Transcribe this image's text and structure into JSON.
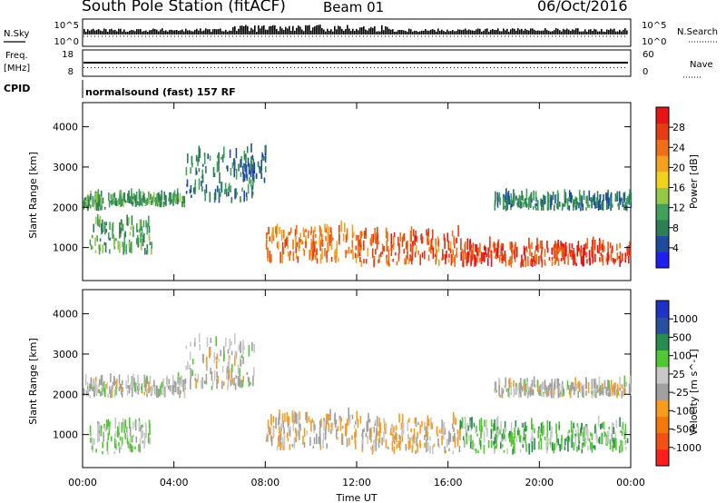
{
  "header": {
    "title": "South Pole Station (fitACF)",
    "beam": "Beam 01",
    "date": "06/Oct/2016"
  },
  "left_labels": {
    "nsky": "N.Sky",
    "freq": "Freq.",
    "mhz": "[MHz]",
    "cpid": "CPID"
  },
  "right_labels": {
    "nsearch": "N.Search",
    "nave": "Nave"
  },
  "cpid_text": "normalsound (fast) 157 RF",
  "noise_ticks": {
    "top": "10^5",
    "bottom": "10^0"
  },
  "freq_ticks": [
    "18",
    "8"
  ],
  "nave_ticks": [
    "60",
    "0"
  ],
  "x_ticks": [
    "00:00",
    "04:00",
    "08:00",
    "12:00",
    "16:00",
    "20:00",
    "00:00"
  ],
  "x_label": "Time UT",
  "y_label": "Slant Range [km]",
  "y_ticks": [
    "4000",
    "3000",
    "2000",
    "1000"
  ],
  "colors": {
    "power": [
      "#1e1ef0",
      "#1e4ba0",
      "#2d7d55",
      "#41a05a",
      "#96c846",
      "#f0d21e",
      "#f5a01e",
      "#f06e14",
      "#e63c14",
      "#e61414"
    ],
    "velocity": [
      "#ff1e1e",
      "#f55014",
      "#f5780a",
      "#fa9b1e",
      "#a0a0a0",
      "#c8c8c8",
      "#50c832",
      "#288c50",
      "#2850a0",
      "#1e32c8"
    ]
  },
  "chart_data": [
    {
      "type": "heatmap",
      "title": "Power",
      "xlabel": "Time UT",
      "ylabel": "Slant Range [km]",
      "xlim": [
        "00:00",
        "24:00"
      ],
      "ylim": [
        180,
        4600
      ],
      "colorbar": {
        "label": "Power [dB]",
        "ticks": [
          "28",
          "24",
          "20",
          "16",
          "12",
          "8",
          "4"
        ],
        "range": [
          0,
          30
        ]
      },
      "regions": [
        {
          "t": [
            0.0,
            1.2
          ],
          "range": [
            1900,
            2200
          ],
          "value": 10
        },
        {
          "t": [
            1.2,
            4.5
          ],
          "range": [
            2000,
            2200
          ],
          "value": 10
        },
        {
          "t": [
            4.5,
            7.5
          ],
          "range": [
            2100,
            3300
          ],
          "value": 8
        },
        {
          "t": [
            7.0,
            8.0
          ],
          "range": [
            2600,
            3400
          ],
          "value": 6
        },
        {
          "t": [
            0.3,
            3.0
          ],
          "range": [
            800,
            1600
          ],
          "value": 10
        },
        {
          "t": [
            8.0,
            12.0
          ],
          "range": [
            600,
            1400
          ],
          "value": 22
        },
        {
          "t": [
            12.0,
            16.5
          ],
          "range": [
            500,
            1300
          ],
          "value": 24
        },
        {
          "t": [
            16.5,
            24.0
          ],
          "range": [
            500,
            1000
          ],
          "value": 26
        },
        {
          "t": [
            18.0,
            24.0
          ],
          "range": [
            1900,
            2200
          ],
          "value": 8
        }
      ]
    },
    {
      "type": "heatmap",
      "title": "Velocity",
      "xlabel": "Time UT",
      "ylabel": "Slant Range [km]",
      "xlim": [
        "00:00",
        "24:00"
      ],
      "ylim": [
        180,
        4600
      ],
      "colorbar": {
        "label": "Velocity [m s^-1]",
        "ticks": [
          "1000",
          "500",
          "100",
          "25",
          "-25",
          "-100",
          "-500",
          "-1000"
        ],
        "range": [
          -1000,
          1000
        ]
      },
      "regions": [
        {
          "t": [
            0.0,
            4.5
          ],
          "range": [
            1900,
            2300
          ],
          "value": 0
        },
        {
          "t": [
            4.5,
            7.5
          ],
          "range": [
            2100,
            3300
          ],
          "value": 0
        },
        {
          "t": [
            0.3,
            3.0
          ],
          "range": [
            500,
            1200
          ],
          "value": 150
        },
        {
          "t": [
            8.0,
            12.0
          ],
          "range": [
            600,
            1400
          ],
          "value": -150
        },
        {
          "t": [
            12.0,
            16.5
          ],
          "range": [
            500,
            1300
          ],
          "value": -150
        },
        {
          "t": [
            16.5,
            24.0
          ],
          "range": [
            500,
            1200
          ],
          "value": 300
        },
        {
          "t": [
            18.0,
            24.0
          ],
          "range": [
            1900,
            2200
          ],
          "value": 0
        }
      ]
    }
  ]
}
